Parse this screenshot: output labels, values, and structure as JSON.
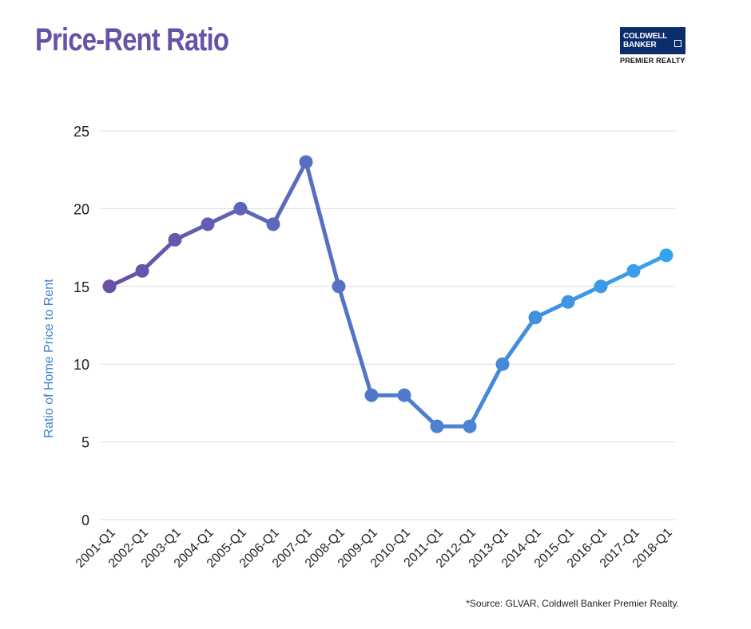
{
  "header": {
    "title": "Price-Rent Ratio",
    "logo_line1": "COLDWELL",
    "logo_line2": "BANKER",
    "logo_sub": "PREMIER REALTY"
  },
  "footer": {
    "source": "*Source: GLVAR, Coldwell Banker Premier Realty."
  },
  "chart_data": {
    "type": "line",
    "title": "Price-Rent Ratio",
    "xlabel": "",
    "ylabel": "Ratio of Home Price to Rent",
    "ylim": [
      0,
      25
    ],
    "yticks": [
      0,
      5,
      10,
      15,
      20,
      25
    ],
    "grid": true,
    "categories": [
      "2001-Q1",
      "2002-Q1",
      "2003-Q1",
      "2004-Q1",
      "2005-Q1",
      "2006-Q1",
      "2007-Q1",
      "2008-Q1",
      "2009-Q1",
      "2010-Q1",
      "2011-Q1",
      "2012-Q1",
      "2013-Q1",
      "2014-Q1",
      "2015-Q1",
      "2016-Q1",
      "2017-Q1",
      "2018-Q1"
    ],
    "series": [
      {
        "values": [
          15,
          16,
          18,
          19,
          20,
          19,
          23,
          15,
          8,
          8,
          6,
          6,
          10,
          13,
          14,
          15,
          16,
          17
        ],
        "color_start": "#6a4fa6",
        "color_end": "#36a3f0"
      }
    ]
  }
}
